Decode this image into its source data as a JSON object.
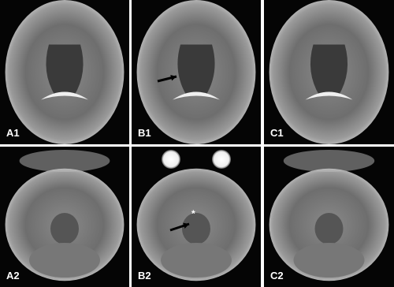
{
  "panels": [
    {
      "label": "A1"
    },
    {
      "label": "B1"
    },
    {
      "label": "C1"
    },
    {
      "label": "A2"
    },
    {
      "label": "B2",
      "annotation": "*"
    },
    {
      "label": "C2"
    }
  ]
}
